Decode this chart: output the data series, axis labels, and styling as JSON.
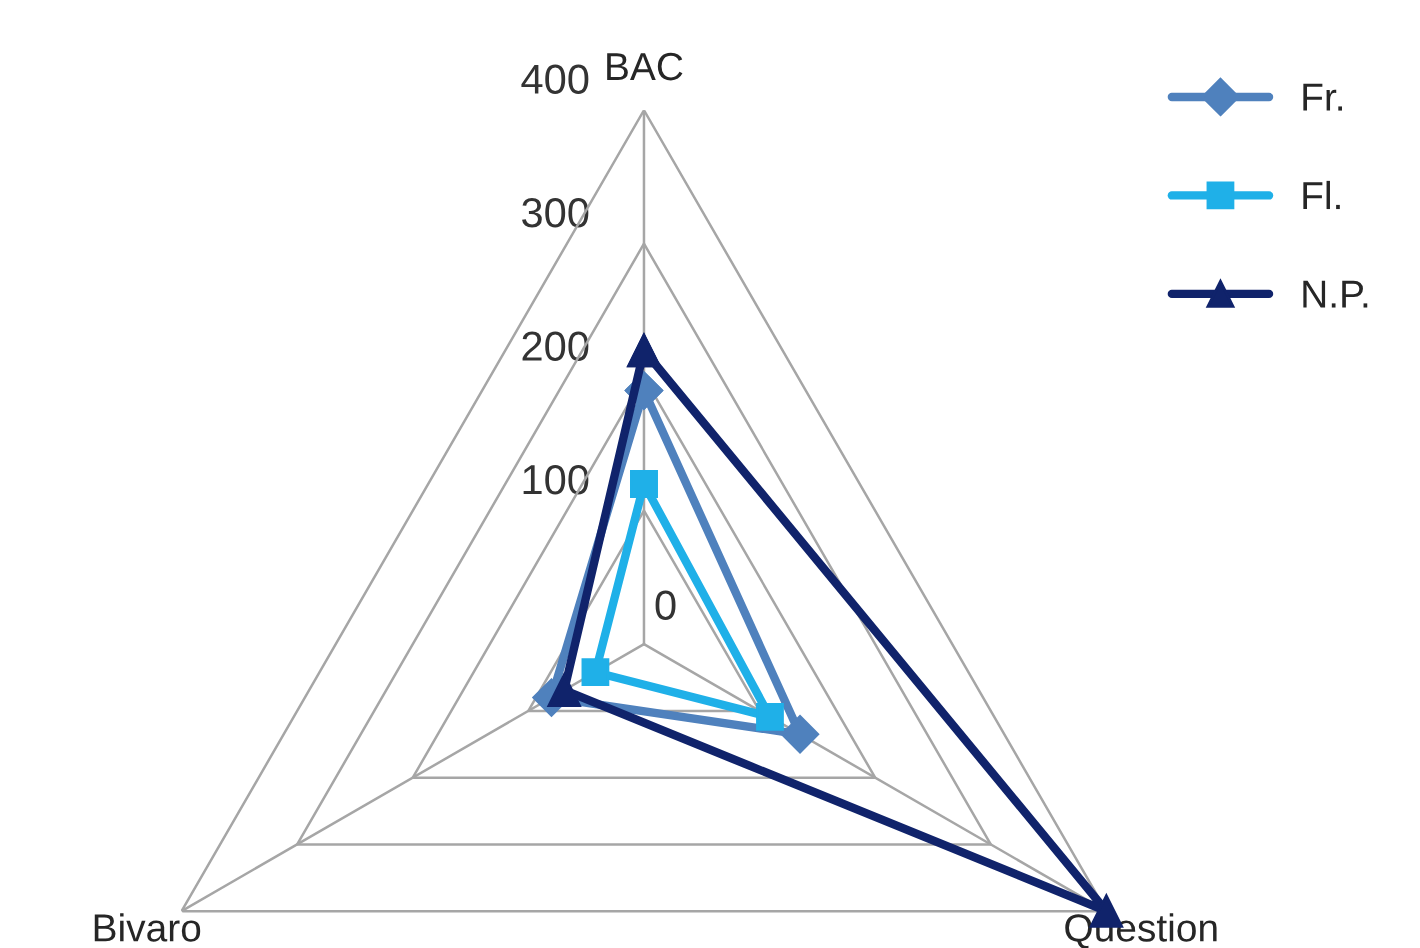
{
  "chart_data": {
    "type": "radar",
    "categories": [
      "BAC",
      "Question",
      "Bivaro"
    ],
    "ylim": [
      0,
      400
    ],
    "yticks": [
      0,
      100,
      200,
      300,
      400
    ],
    "grid": true,
    "legend": "right",
    "series": [
      {
        "name": "Fr.",
        "color": "#4f81bd",
        "marker": "diamond",
        "values": [
          190,
          135,
          80
        ]
      },
      {
        "name": "Fl.",
        "color": "#1fb0e8",
        "marker": "square",
        "values": [
          120,
          109,
          42
        ]
      },
      {
        "name": "N.P.",
        "color": "#10236b",
        "marker": "triangle",
        "values": [
          220,
          400,
          69
        ]
      }
    ]
  }
}
